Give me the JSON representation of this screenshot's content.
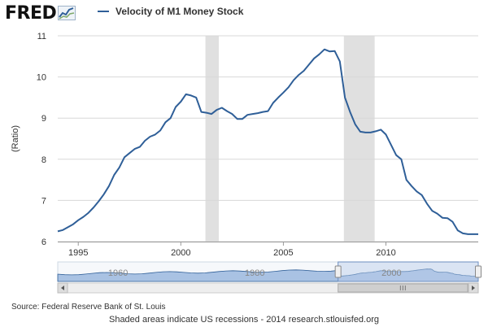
{
  "logo": {
    "text": "FRED",
    "icon": "chart-line-icon"
  },
  "legend": {
    "label": "Velocity of M1 Money Stock",
    "color": "#2f5f98"
  },
  "source": "Source: Federal Reserve Bank of St. Louis",
  "footer": "Shaded areas indicate US recessions - 2014 research.stlouisfed.org",
  "colors": {
    "line": "#2f5f98",
    "recession": "#e0e0e0",
    "grid": "#d8d8d8",
    "navigator_fill": "#a9c2e3",
    "navigator_mask": "#b9cde8"
  },
  "chart_data": {
    "type": "line",
    "title": "",
    "xlabel": "",
    "ylabel": "(Ratio)",
    "xlim": [
      1994.0,
      2014.5
    ],
    "ylim": [
      6,
      11
    ],
    "xticks": [
      1995,
      2000,
      2005,
      2010
    ],
    "yticks": [
      6,
      7,
      8,
      9,
      10,
      11
    ],
    "grid": "horizontal",
    "legend_position": "top",
    "recessions": [
      [
        2001.2,
        2001.85
      ],
      [
        2007.95,
        2009.45
      ]
    ],
    "series": [
      {
        "name": "Velocity of M1 Money Stock",
        "x": [
          1994.0,
          1994.25,
          1994.5,
          1994.75,
          1995.0,
          1995.25,
          1995.5,
          1995.75,
          1996.0,
          1996.25,
          1996.5,
          1996.75,
          1997.0,
          1997.25,
          1997.5,
          1997.75,
          1998.0,
          1998.25,
          1998.5,
          1998.75,
          1999.0,
          1999.25,
          1999.5,
          1999.75,
          2000.0,
          2000.25,
          2000.5,
          2000.75,
          2001.0,
          2001.25,
          2001.5,
          2001.75,
          2002.0,
          2002.25,
          2002.5,
          2002.75,
          2003.0,
          2003.25,
          2003.5,
          2003.75,
          2004.0,
          2004.25,
          2004.5,
          2004.75,
          2005.0,
          2005.25,
          2005.5,
          2005.75,
          2006.0,
          2006.25,
          2006.5,
          2006.75,
          2007.0,
          2007.25,
          2007.5,
          2007.75,
          2008.0,
          2008.25,
          2008.5,
          2008.75,
          2009.0,
          2009.25,
          2009.5,
          2009.75,
          2010.0,
          2010.25,
          2010.5,
          2010.75,
          2011.0,
          2011.25,
          2011.5,
          2011.75,
          2012.0,
          2012.25,
          2012.5,
          2012.75,
          2013.0,
          2013.25,
          2013.5,
          2013.75,
          2014.0,
          2014.25,
          2014.5
        ],
        "values": [
          6.25,
          6.28,
          6.35,
          6.42,
          6.52,
          6.6,
          6.7,
          6.83,
          6.98,
          7.15,
          7.35,
          7.62,
          7.8,
          8.05,
          8.15,
          8.25,
          8.3,
          8.45,
          8.55,
          8.6,
          8.7,
          8.9,
          9.0,
          9.27,
          9.4,
          9.58,
          9.55,
          9.5,
          9.15,
          9.13,
          9.1,
          9.2,
          9.25,
          9.17,
          9.1,
          8.98,
          8.98,
          9.08,
          9.1,
          9.12,
          9.15,
          9.17,
          9.37,
          9.5,
          9.62,
          9.75,
          9.92,
          10.05,
          10.15,
          10.3,
          10.45,
          10.55,
          10.67,
          10.62,
          10.63,
          10.38,
          9.5,
          9.15,
          8.85,
          8.67,
          8.65,
          8.65,
          8.68,
          8.72,
          8.6,
          8.35,
          8.1,
          8.0,
          7.5,
          7.35,
          7.22,
          7.13,
          6.92,
          6.75,
          6.68,
          6.58,
          6.57,
          6.48,
          6.27,
          6.2,
          6.18,
          6.18,
          6.18
        ]
      }
    ],
    "navigator": {
      "ticks": [
        1960,
        1980,
        2000
      ],
      "xlim": [
        1953,
        2014.5
      ],
      "selected": [
        1994.0,
        2014.5
      ]
    }
  }
}
